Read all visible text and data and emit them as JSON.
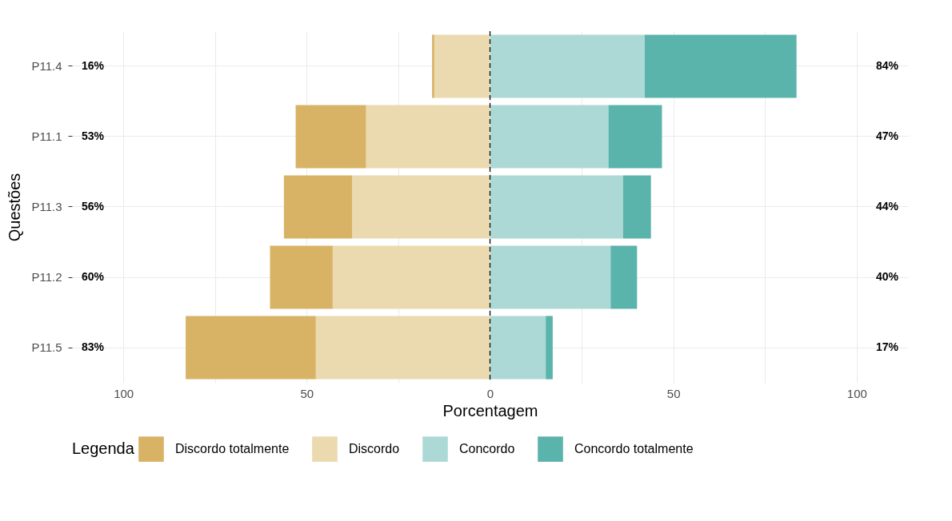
{
  "chart_data": {
    "type": "bar",
    "orientation": "horizontal",
    "stacked": true,
    "xlabel": "Porcentagem",
    "ylabel": "Questões",
    "legend_title": "Legenda",
    "legend": "bottom",
    "grid": true,
    "categories": [
      "P11.4",
      "P11.1",
      "P11.3",
      "P11.2",
      "P11.5"
    ],
    "series": [
      {
        "name": "Discordo",
        "color": "#ebd9b0",
        "values": [
          -15.2,
          -33.8,
          -37.6,
          -42.9,
          -47.5
        ]
      },
      {
        "name": "Discordo totalmente",
        "color": "#d8b365",
        "values": [
          -0.6,
          -19.2,
          -18.6,
          -17.1,
          -35.5
        ]
      },
      {
        "name": "Concordo",
        "color": "#acd9d5",
        "values": [
          42.2,
          32.3,
          36.3,
          32.9,
          15.2
        ]
      },
      {
        "name": "Concordo totalmente",
        "color": "#5ab4ac",
        "values": [
          41.4,
          14.6,
          7.6,
          7.2,
          1.9
        ]
      }
    ],
    "xlim": [
      -114,
      114
    ],
    "xticks": [
      {
        "value": -100,
        "label": "100"
      },
      {
        "value": -75,
        "label": null
      },
      {
        "value": -50,
        "label": "50"
      },
      {
        "value": -25,
        "label": null
      },
      0,
      {
        "value": 25,
        "label": null
      },
      50,
      {
        "value": 75,
        "label": null
      },
      100
    ],
    "ref_lines": [
      {
        "axis": "x",
        "value": 0,
        "color": "#000000",
        "line_style": "dashed"
      }
    ],
    "annotations": [
      "16%",
      "53%",
      "56%",
      "60%",
      "83%",
      "84%",
      "47%",
      "44%",
      "40%",
      "17%"
    ]
  }
}
